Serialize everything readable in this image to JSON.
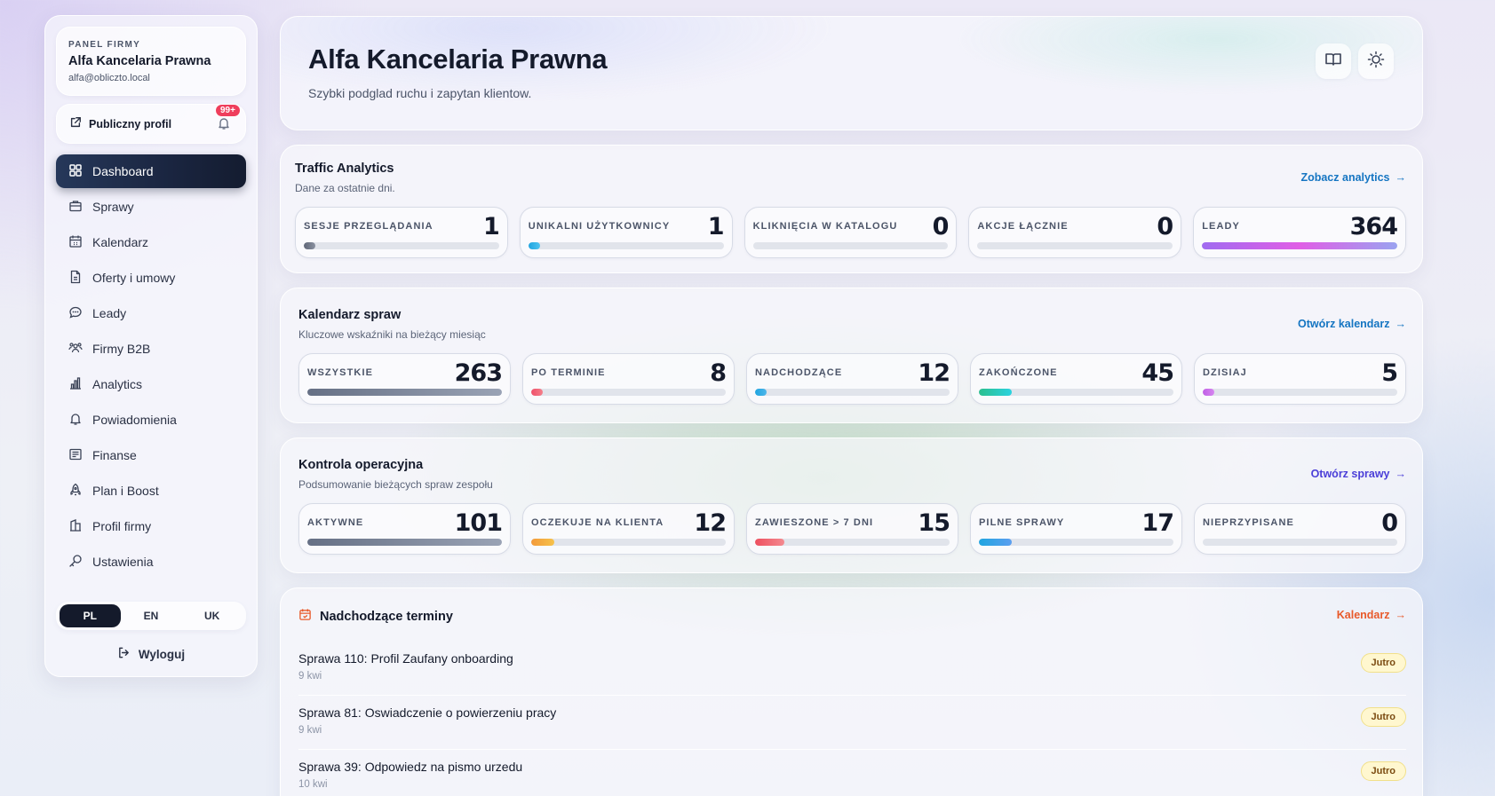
{
  "sidebar": {
    "kicker": "PANEL FIRMY",
    "firm_name": "Alfa Kancelaria Prawna",
    "email": "alfa@obliczto.local",
    "public_profile": "Publiczny profil",
    "notifications_badge": "99+",
    "items": [
      {
        "label": "Dashboard",
        "icon": "grid-icon",
        "active": true
      },
      {
        "label": "Sprawy",
        "icon": "briefcase-icon"
      },
      {
        "label": "Kalendarz",
        "icon": "calendar-icon"
      },
      {
        "label": "Oferty i umowy",
        "icon": "document-icon"
      },
      {
        "label": "Leady",
        "icon": "chat-icon"
      },
      {
        "label": "Firmy B2B",
        "icon": "users-icon"
      },
      {
        "label": "Analytics",
        "icon": "bar-chart-icon"
      },
      {
        "label": "Powiadomienia",
        "icon": "bell-icon"
      },
      {
        "label": "Finanse",
        "icon": "receipt-icon"
      },
      {
        "label": "Plan i Boost",
        "icon": "rocket-icon"
      },
      {
        "label": "Profil firmy",
        "icon": "building-icon"
      },
      {
        "label": "Ustawienia",
        "icon": "key-icon"
      }
    ],
    "languages": [
      {
        "label": "PL",
        "active": true
      },
      {
        "label": "EN"
      },
      {
        "label": "UK"
      }
    ],
    "logout": "Wyloguj"
  },
  "hero": {
    "title": "Alfa Kancelaria Prawna",
    "subtitle": "Szybki podglad ruchu i zapytan klientow."
  },
  "traffic": {
    "title": "Traffic Analytics",
    "subtitle": "Dane za ostatnie dni.",
    "link": "Zobacz analytics",
    "link_color": "#1575c2",
    "stats": [
      {
        "label": "SESJE PRZEGLĄDANIA",
        "value": "1",
        "fill": 5,
        "color": "linear-gradient(90deg,#5f6677,#8a91a0)"
      },
      {
        "label": "UNIKALNI UŻYTKOWNICY",
        "value": "1",
        "fill": 5,
        "color": "linear-gradient(90deg,#1fa5e0,#4fc3f0)"
      },
      {
        "label": "KLIKNIĘCIA W KATALOGU",
        "value": "0",
        "fill": 0,
        "color": "#999"
      },
      {
        "label": "AKCJE ŁĄCZNIE",
        "value": "0",
        "fill": 0,
        "color": "#999"
      },
      {
        "label": "LEADY",
        "value": "364",
        "fill": 100,
        "color": "linear-gradient(90deg,#a06bf0,#e05ee6 50%,#9aa3f0)"
      }
    ]
  },
  "calendar": {
    "title": "Kalendarz spraw",
    "subtitle": "Kluczowe wskaźniki na bieżący miesiąc",
    "link": "Otwórz kalendarz",
    "link_color": "#1575c2",
    "stats": [
      {
        "label": "WSZYSTKIE",
        "value": "263",
        "fill": 100,
        "color": "linear-gradient(90deg,#667085,#9aa3b5)"
      },
      {
        "label": "PO TERMINIE",
        "value": "8",
        "fill": 5,
        "color": "linear-gradient(90deg,#f0506a,#f47f8a)"
      },
      {
        "label": "NADCHODZĄCE",
        "value": "12",
        "fill": 5,
        "color": "linear-gradient(90deg,#1fa5e0,#4fb6ea)"
      },
      {
        "label": "ZAKOŃCZONE",
        "value": "45",
        "fill": 17,
        "color": "linear-gradient(90deg,#2bbf8e,#2bd3e0)"
      },
      {
        "label": "DZISIAJ",
        "value": "5",
        "fill": 5,
        "color": "linear-gradient(90deg,#c05ee6,#d787f0)"
      }
    ]
  },
  "operations": {
    "title": "Kontrola operacyjna",
    "subtitle": "Podsumowanie bieżących spraw zespołu",
    "link": "Otwórz sprawy",
    "link_color": "#4b3fd8",
    "stats": [
      {
        "label": "AKTYWNE",
        "value": "101",
        "fill": 100,
        "color": "linear-gradient(90deg,#667085,#9aa3b5)"
      },
      {
        "label": "OCZEKUJE NA KLIENTA",
        "value": "12",
        "fill": 12,
        "color": "linear-gradient(90deg,#f39a3a,#f6c24a)"
      },
      {
        "label": "ZAWIESZONE > 7 DNI",
        "value": "15",
        "fill": 15,
        "color": "linear-gradient(90deg,#ee4f5f,#f48a90)"
      },
      {
        "label": "PILNE SPRAWY",
        "value": "17",
        "fill": 17,
        "color": "linear-gradient(90deg,#1fa5e0,#5c9ff0)"
      },
      {
        "label": "NIEPRZYPISANE",
        "value": "0",
        "fill": 0,
        "color": "#999"
      }
    ]
  },
  "deadlines": {
    "title": "Nadchodzące terminy",
    "link": "Kalendarz",
    "link_color": "#e85a2a",
    "items": [
      {
        "title": "Sprawa 110: Profil Zaufany onboarding",
        "date": "9 kwi",
        "badge": "Jutro"
      },
      {
        "title": "Sprawa 81: Oswiadczenie o powierzeniu pracy",
        "date": "9 kwi",
        "badge": "Jutro"
      },
      {
        "title": "Sprawa 39: Odpowiedz na pismo urzedu",
        "date": "10 kwi",
        "badge": "Jutro"
      }
    ]
  }
}
